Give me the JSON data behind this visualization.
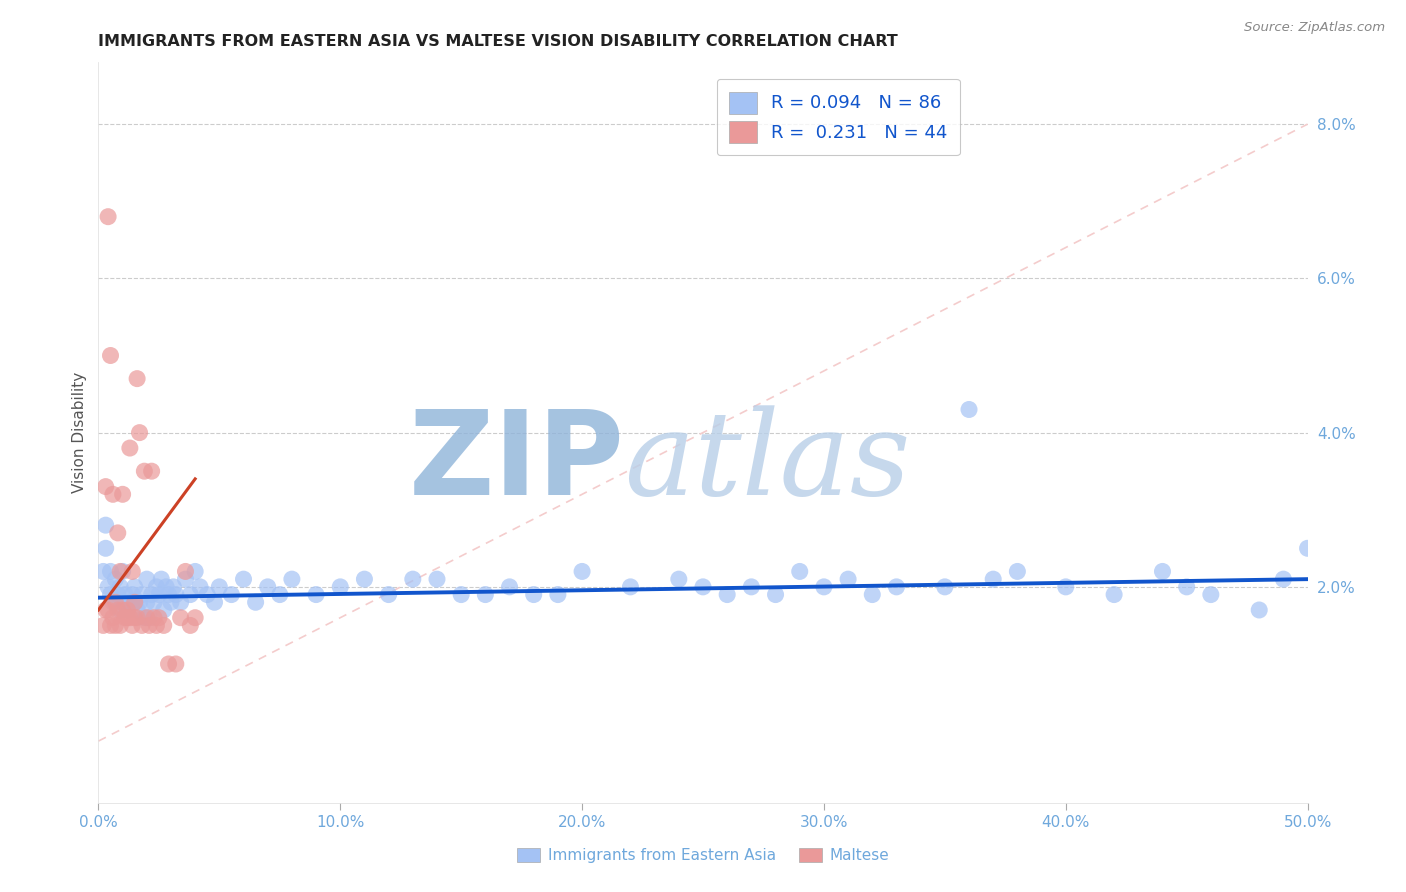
{
  "title": "IMMIGRANTS FROM EASTERN ASIA VS MALTESE VISION DISABILITY CORRELATION CHART",
  "source": "Source: ZipAtlas.com",
  "ylabel": "Vision Disability",
  "xlim": [
    0.0,
    0.5
  ],
  "ylim": [
    -0.008,
    0.088
  ],
  "xticks": [
    0.0,
    0.1,
    0.2,
    0.3,
    0.4,
    0.5
  ],
  "yticks_right": [
    0.02,
    0.04,
    0.06,
    0.08
  ],
  "ytick_labels_right": [
    "2.0%",
    "4.0%",
    "6.0%",
    "8.0%"
  ],
  "xtick_labels": [
    "0.0%",
    "10.0%",
    "20.0%",
    "30.0%",
    "40.0%",
    "50.0%"
  ],
  "legend_blue_r": "0.094",
  "legend_blue_n": "86",
  "legend_pink_r": "0.231",
  "legend_pink_n": "44",
  "blue_color": "#a4c2f4",
  "pink_color": "#ea9999",
  "blue_line_color": "#1155cc",
  "pink_line_color": "#cc4125",
  "watermark_zip_color": "#8ca9d0",
  "watermark_atlas_color": "#b5c9e8",
  "diag_line_color": "#f4cccc",
  "blue_x": [
    0.002,
    0.003,
    0.003,
    0.004,
    0.005,
    0.005,
    0.006,
    0.007,
    0.008,
    0.009,
    0.009,
    0.01,
    0.01,
    0.011,
    0.012,
    0.013,
    0.014,
    0.015,
    0.015,
    0.016,
    0.017,
    0.018,
    0.019,
    0.02,
    0.02,
    0.021,
    0.022,
    0.023,
    0.024,
    0.025,
    0.026,
    0.027,
    0.028,
    0.029,
    0.03,
    0.031,
    0.032,
    0.034,
    0.036,
    0.038,
    0.04,
    0.042,
    0.045,
    0.048,
    0.05,
    0.055,
    0.06,
    0.065,
    0.07,
    0.075,
    0.08,
    0.09,
    0.1,
    0.11,
    0.12,
    0.13,
    0.14,
    0.15,
    0.16,
    0.17,
    0.18,
    0.19,
    0.2,
    0.22,
    0.24,
    0.25,
    0.26,
    0.27,
    0.28,
    0.29,
    0.3,
    0.31,
    0.32,
    0.33,
    0.35,
    0.37,
    0.38,
    0.4,
    0.42,
    0.44,
    0.45,
    0.46,
    0.48,
    0.49,
    0.5,
    0.36
  ],
  "blue_y": [
    0.022,
    0.025,
    0.028,
    0.02,
    0.022,
    0.019,
    0.018,
    0.021,
    0.019,
    0.02,
    0.017,
    0.022,
    0.018,
    0.019,
    0.017,
    0.018,
    0.019,
    0.018,
    0.02,
    0.017,
    0.018,
    0.019,
    0.016,
    0.018,
    0.021,
    0.016,
    0.019,
    0.018,
    0.02,
    0.019,
    0.021,
    0.017,
    0.02,
    0.019,
    0.018,
    0.02,
    0.019,
    0.018,
    0.021,
    0.019,
    0.022,
    0.02,
    0.019,
    0.018,
    0.02,
    0.019,
    0.021,
    0.018,
    0.02,
    0.019,
    0.021,
    0.019,
    0.02,
    0.021,
    0.019,
    0.021,
    0.021,
    0.019,
    0.019,
    0.02,
    0.019,
    0.019,
    0.022,
    0.02,
    0.021,
    0.02,
    0.019,
    0.02,
    0.019,
    0.022,
    0.02,
    0.021,
    0.019,
    0.02,
    0.02,
    0.021,
    0.022,
    0.02,
    0.019,
    0.022,
    0.02,
    0.019,
    0.017,
    0.021,
    0.025,
    0.043
  ],
  "pink_x": [
    0.002,
    0.003,
    0.003,
    0.004,
    0.004,
    0.005,
    0.005,
    0.006,
    0.006,
    0.007,
    0.007,
    0.008,
    0.008,
    0.009,
    0.009,
    0.01,
    0.01,
    0.011,
    0.012,
    0.012,
    0.013,
    0.013,
    0.014,
    0.014,
    0.015,
    0.015,
    0.016,
    0.016,
    0.017,
    0.018,
    0.019,
    0.02,
    0.021,
    0.022,
    0.023,
    0.024,
    0.025,
    0.027,
    0.029,
    0.032,
    0.034,
    0.036,
    0.038,
    0.04
  ],
  "pink_y": [
    0.015,
    0.033,
    0.017,
    0.068,
    0.017,
    0.05,
    0.015,
    0.032,
    0.016,
    0.018,
    0.015,
    0.027,
    0.017,
    0.022,
    0.015,
    0.032,
    0.017,
    0.016,
    0.017,
    0.016,
    0.038,
    0.016,
    0.022,
    0.015,
    0.018,
    0.016,
    0.047,
    0.016,
    0.04,
    0.015,
    0.035,
    0.016,
    0.015,
    0.035,
    0.016,
    0.015,
    0.016,
    0.015,
    0.01,
    0.01,
    0.016,
    0.022,
    0.015,
    0.016
  ],
  "pink_trend_x": [
    0.0,
    0.04
  ],
  "pink_trend_y": [
    0.017,
    0.034
  ],
  "blue_trend_x": [
    0.0,
    0.5
  ],
  "blue_trend_y": [
    0.0186,
    0.021
  ]
}
